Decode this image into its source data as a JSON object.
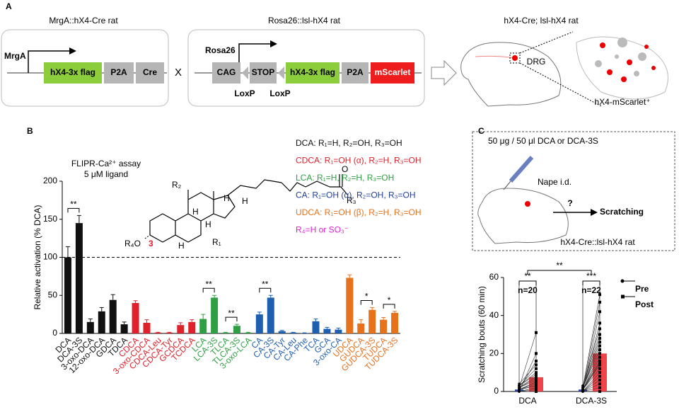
{
  "panel_a": {
    "letter": "A",
    "left_title": "MrgA::hX4-Cre rat",
    "left_promoter": "MrgA",
    "left_genes": [
      "hX4-3x flag",
      "P2A",
      "Cre"
    ],
    "cross": "X",
    "right_title": "Rosa26::lsl-hX4 rat",
    "right_promoter": "Rosa26",
    "right_genes": [
      "CAG",
      "STOP",
      "hX4-3x flag",
      "P2A",
      "mScarlet"
    ],
    "loxp": [
      "LoxP",
      "LoxP"
    ],
    "rat_title": "hX4-Cre; lsl-hX4 rat",
    "drg": "DRG",
    "cells": "hX4-mScarlet⁺"
  },
  "panel_b": {
    "letter": "B",
    "structure": {
      "r2": "R₂",
      "o": "O",
      "r3": "R₃",
      "h1": "H",
      "h2": "H",
      "h3": "H",
      "h4": "H",
      "h5": "H",
      "r4o": "R₄O",
      "c3": "3",
      "r1": "R₁"
    },
    "legend_lines": [
      {
        "text": "DCA: R₁=H, R₂=OH, R₃=OH",
        "color": "#111111"
      },
      {
        "text": "CDCA: R₁=OH (α), R₂=H, R₃=OH",
        "color": "#e0202a"
      },
      {
        "text": "LCA: R₁=H, R₂=H, R₃=OH",
        "color": "#2ea043"
      },
      {
        "text": "CA: R₁=OH (α), R₂=OH, R₃=OH",
        "color": "#1f3f9e"
      },
      {
        "text": "UDCA: R₁=OH (β), R₂=H, R₃=OH",
        "color": "#e8711c"
      },
      {
        "text": "R₄=H or SO₃⁻",
        "color": "#e020d0"
      }
    ]
  },
  "panel_c": {
    "letter": "C",
    "dose": "50 μg / 50 μl DCA or DCA-3S",
    "route": "Nape i.d.",
    "question": "?",
    "outcome": "Scratching",
    "rat": "hX4-Cre::lsl-hX4 rat"
  },
  "chart_data": [
    {
      "type": "bar",
      "title": "FLIPR-Ca²⁺ assay",
      "subtitle": "5 μM ligand",
      "ylabel": "Relative activation (% DCA)",
      "categories": [
        "DCA",
        "DCA-3S",
        "3-oxo-DCA",
        "12-oxo-DCA",
        "GDCA",
        "TDCA",
        "CDCA",
        "3-oxo-CDCA",
        "CDCA-Leu",
        "CDCA-Tyr",
        "GCDCA",
        "TCDCA",
        "LCA",
        "LCA-3S",
        "TLCA",
        "TLCA-3S",
        "3-oxo-LCA",
        "CA",
        "CA-3S",
        "CA-Tyr",
        "CA-Leu",
        "CA-Phe",
        "TCA",
        "GCA",
        "3-oxo-CA",
        "UDCA",
        "GUDCA",
        "GUDCA-3S",
        "TUDCA",
        "TUDCA-3S"
      ],
      "values": [
        100,
        145,
        15,
        29,
        44,
        12,
        40,
        14,
        1,
        1,
        11,
        15,
        19,
        47,
        1,
        10,
        1,
        25,
        47,
        3,
        1,
        0.5,
        16,
        6,
        5,
        73,
        13,
        31,
        18,
        27
      ],
      "errors": [
        14,
        10,
        4,
        5,
        7,
        3,
        3,
        4,
        0.5,
        0.5,
        3,
        3,
        6,
        3,
        0.5,
        2,
        0.5,
        3,
        3,
        1,
        0.5,
        0.3,
        3,
        2,
        2,
        4,
        5,
        3,
        3,
        2
      ],
      "colors": [
        "#111111",
        "#111111",
        "#111111",
        "#111111",
        "#111111",
        "#111111",
        "#e0202a",
        "#e0202a",
        "#e0202a",
        "#e0202a",
        "#e0202a",
        "#e0202a",
        "#2ea043",
        "#2ea043",
        "#2ea043",
        "#2ea043",
        "#2ea043",
        "#1f5fb0",
        "#1f5fb0",
        "#1f5fb0",
        "#1f5fb0",
        "#1f5fb0",
        "#1f5fb0",
        "#1f5fb0",
        "#1f5fb0",
        "#e8711c",
        "#e8711c",
        "#e8711c",
        "#e8711c",
        "#e8711c"
      ],
      "ylim": [
        0,
        200
      ],
      "yticks": [
        0,
        50,
        100,
        150,
        200
      ],
      "reference_line": 100,
      "annotations": [
        {
          "text": "**",
          "between": [
            "DCA",
            "DCA-3S"
          ]
        },
        {
          "text": "**",
          "between": [
            "LCA",
            "LCA-3S"
          ]
        },
        {
          "text": "**",
          "between": [
            "TLCA",
            "TLCA-3S"
          ]
        },
        {
          "text": "**",
          "between": [
            "CA",
            "CA-3S"
          ]
        },
        {
          "text": "*",
          "between": [
            "GUDCA",
            "GUDCA-3S"
          ]
        },
        {
          "text": "*",
          "between": [
            "TUDCA",
            "TUDCA-3S"
          ]
        }
      ]
    },
    {
      "type": "bar",
      "ylabel": "Scratching bouts (60 min)",
      "categories": [
        "DCA",
        "DCA-3S"
      ],
      "series": [
        {
          "name": "Pre",
          "color": "#2040b0",
          "values": [
            1,
            1
          ]
        },
        {
          "name": "Post",
          "color": "#f0444a",
          "values": [
            7.5,
            20
          ]
        }
      ],
      "points": [
        {
          "pre": [
            0,
            0,
            0,
            0,
            0,
            1,
            1,
            1,
            1,
            1,
            2,
            2,
            2,
            3,
            3,
            3,
            4,
            1,
            0,
            2
          ],
          "post": [
            0,
            0,
            1,
            2,
            2,
            3,
            3,
            4,
            5,
            5,
            6,
            7,
            8,
            9,
            10,
            12,
            14,
            16,
            20,
            31
          ]
        },
        {
          "pre": [
            0,
            0,
            0,
            0,
            0,
            0,
            1,
            1,
            1,
            1,
            1,
            1,
            2,
            2,
            2,
            2,
            3,
            3,
            1,
            0,
            1,
            2
          ],
          "post": [
            0,
            2,
            4,
            6,
            8,
            10,
            12,
            14,
            15,
            16,
            18,
            20,
            22,
            24,
            26,
            28,
            30,
            33,
            36,
            42,
            47,
            51
          ]
        }
      ],
      "ylim": [
        0,
        60
      ],
      "yticks": [
        0,
        20,
        40,
        60
      ],
      "n_labels": [
        "n=20",
        "n=22"
      ],
      "significance": {
        "within": [
          "**",
          "***"
        ],
        "between": "**"
      }
    }
  ]
}
